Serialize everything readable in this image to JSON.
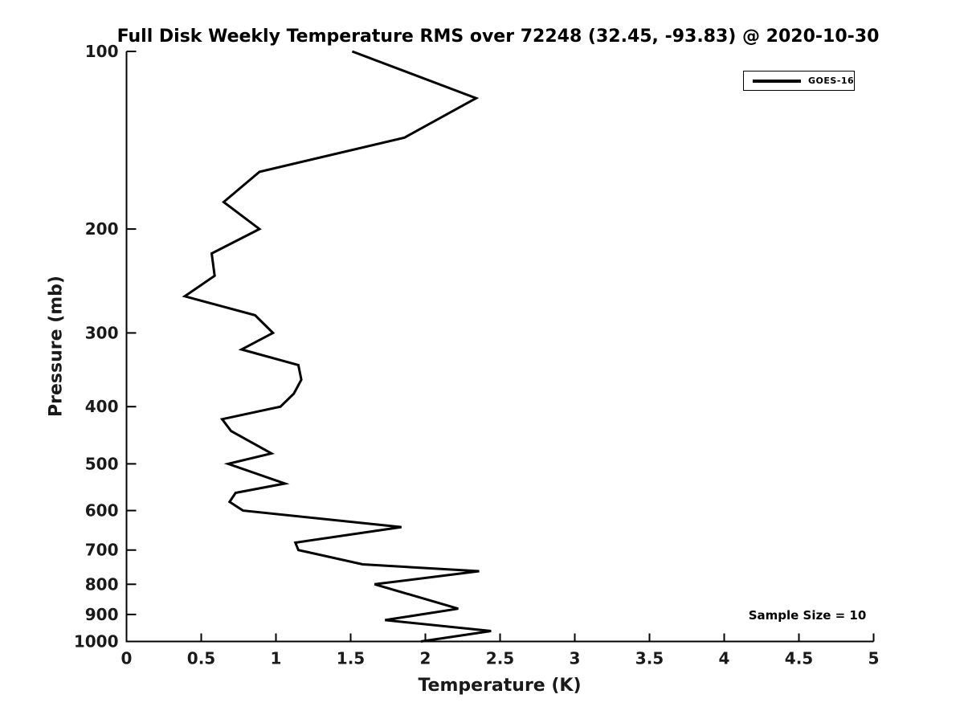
{
  "title": "Full Disk Weekly Temperature RMS over 72248 (32.45, -93.83) @ 2020-10-30",
  "legend": {
    "label": "GOES-16",
    "line_color": "#000000"
  },
  "annotation": {
    "sample_size_text": "Sample Size = 10"
  },
  "colors": {
    "background": "#ffffff",
    "axis": "#000000",
    "tick_text": "#1a1a1a",
    "series_line": "#000000"
  },
  "chart_data": {
    "type": "line",
    "title": "Full Disk Weekly Temperature RMS over 72248 (32.45, -93.83) @ 2020-10-30",
    "xlabel": "Temperature (K)",
    "ylabel": "Pressure (mb)",
    "xlim": [
      0,
      5
    ],
    "ylim": [
      100,
      1000
    ],
    "x_scale": "linear",
    "y_scale": "log",
    "y_axis_inverted": true,
    "grid": false,
    "legend_position": "top-right",
    "annotation": "Sample Size = 10",
    "x_ticks": [
      0,
      0.5,
      1,
      1.5,
      2,
      2.5,
      3,
      3.5,
      4,
      4.5,
      5
    ],
    "x_tick_labels": [
      "0",
      "0.5",
      "1",
      "1.5",
      "2",
      "2.5",
      "3",
      "3.5",
      "4",
      "4.5",
      "5"
    ],
    "y_ticks": [
      100,
      200,
      300,
      400,
      500,
      600,
      700,
      800,
      900,
      1000
    ],
    "y_tick_labels": [
      "100",
      "200",
      "300",
      "400",
      "500",
      "600",
      "700",
      "800",
      "900",
      "1000"
    ],
    "series": [
      {
        "name": "GOES-16",
        "color": "#000000",
        "pressure_mb": [
          100,
          120,
          140,
          160,
          180,
          200,
          220,
          240,
          260,
          280,
          300,
          320,
          340,
          360,
          380,
          400,
          420,
          440,
          480,
          500,
          540,
          560,
          580,
          600,
          640,
          680,
          700,
          740,
          760,
          800,
          880,
          920,
          960,
          1000
        ],
        "rms_k": [
          1.51,
          2.34,
          1.86,
          0.89,
          0.65,
          0.89,
          0.57,
          0.59,
          0.39,
          0.86,
          0.98,
          0.77,
          1.15,
          1.17,
          1.12,
          1.03,
          0.64,
          0.7,
          0.97,
          0.68,
          1.06,
          0.73,
          0.69,
          0.78,
          1.84,
          1.13,
          1.15,
          1.58,
          2.36,
          1.66,
          2.22,
          1.73,
          2.44,
          1.97
        ]
      }
    ]
  }
}
